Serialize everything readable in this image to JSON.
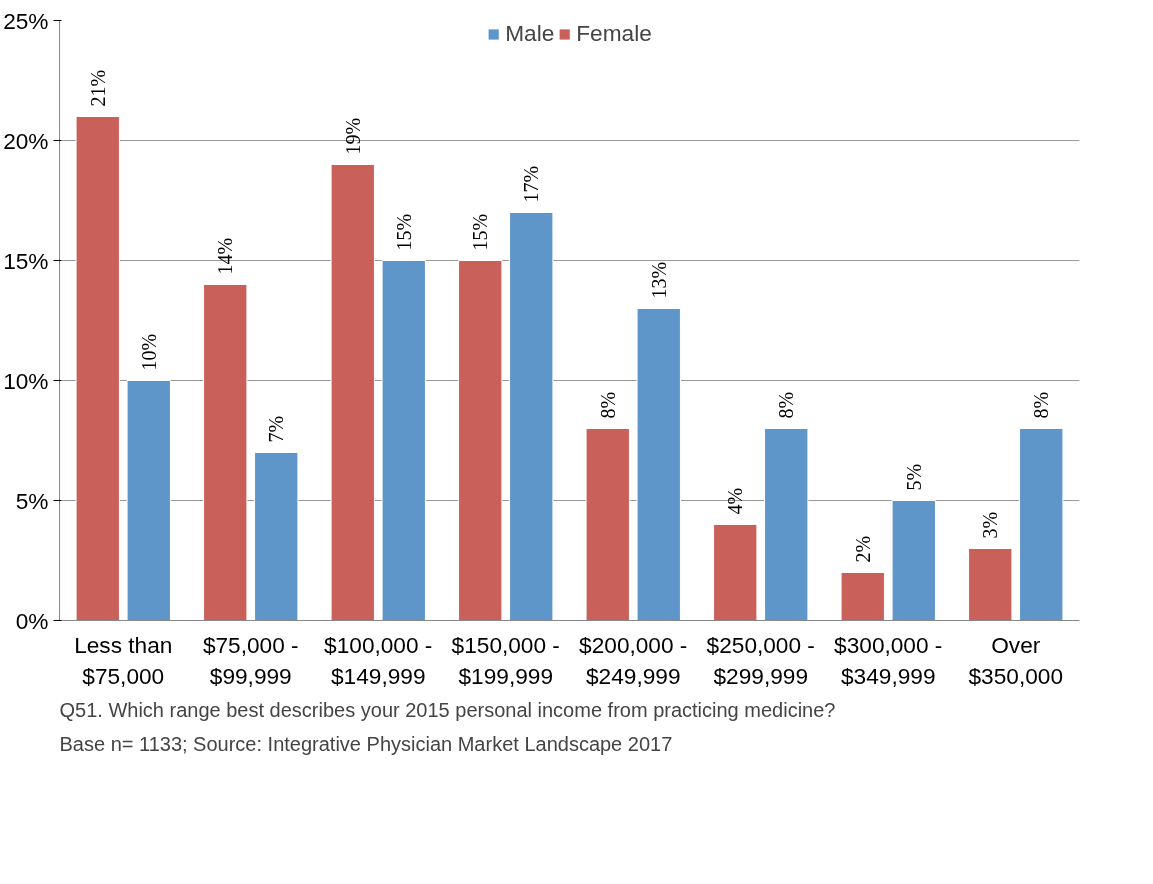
{
  "chart_data": {
    "type": "bar",
    "categories": [
      "Less than $75,000",
      "$75,000 - $99,999",
      "$100,000 - $149,999",
      "$150,000 - $199,999",
      "$200,000 - $249,999",
      "$250,000 - $299,999",
      "$300,000 - $349,999",
      "Over $350,000"
    ],
    "series": [
      {
        "name": "Female",
        "color": "#c9615a",
        "values": [
          21,
          14,
          19,
          15,
          8,
          4,
          2,
          3
        ],
        "value_labels": [
          "21%",
          "14%",
          "19%",
          "15%",
          "8%",
          "4%",
          "2%",
          "3%"
        ]
      },
      {
        "name": "Male",
        "color": "#5f96c9",
        "values": [
          10,
          7,
          15,
          17,
          13,
          8,
          5,
          8
        ],
        "value_labels": [
          "10%",
          "7%",
          "15%",
          "17%",
          "13%",
          "8%",
          "5%",
          "8%"
        ]
      }
    ],
    "ylim": [
      0,
      25
    ],
    "yticks": [
      {
        "value": 0,
        "label": "0%"
      },
      {
        "value": 5,
        "label": "5%"
      },
      {
        "value": 10,
        "label": "10%"
      },
      {
        "value": 15,
        "label": "15%"
      },
      {
        "value": 20,
        "label": "20%"
      },
      {
        "value": 25,
        "label": "25%"
      }
    ],
    "grid": "y",
    "legend": "top",
    "annotations": [
      "Q51. Which range best describes your 2015 personal income from practicing medicine?",
      "Base n= 1133; Source: Integrative Physician Market Landscape 2017"
    ]
  }
}
